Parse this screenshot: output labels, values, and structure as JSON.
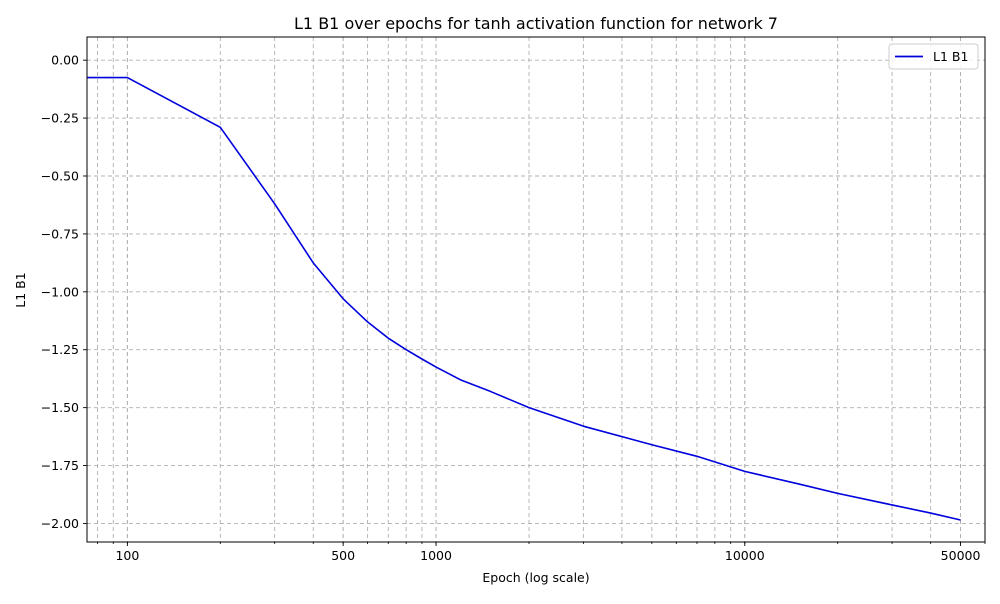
{
  "chart_data": {
    "type": "line",
    "title": "L1 B1 over epochs for tanh activation function for network 7",
    "xlabel": "Epoch (log scale)",
    "ylabel": "L1 B1",
    "xscale": "log",
    "xlim": [
      74,
      60000
    ],
    "ylim": [
      -2.08,
      0.1
    ],
    "xticks": [
      {
        "value": 100,
        "label": "100"
      },
      {
        "value": 500,
        "label": "500"
      },
      {
        "value": 1000,
        "label": "1000"
      },
      {
        "value": 10000,
        "label": "10000"
      },
      {
        "value": 50000,
        "label": "50000"
      }
    ],
    "yticks": [
      {
        "value": 0.0,
        "label": "0.00"
      },
      {
        "value": -0.25,
        "label": "−0.25"
      },
      {
        "value": -0.5,
        "label": "−0.50"
      },
      {
        "value": -0.75,
        "label": "−0.75"
      },
      {
        "value": -1.0,
        "label": "−1.00"
      },
      {
        "value": -1.25,
        "label": "−1.25"
      },
      {
        "value": -1.5,
        "label": "−1.50"
      },
      {
        "value": -1.75,
        "label": "−1.75"
      },
      {
        "value": -2.0,
        "label": "−2.00"
      }
    ],
    "grid": true,
    "minor_grid_x": true,
    "legend_position": "top-right",
    "series": [
      {
        "name": "L1 B1",
        "color": "#0000dd",
        "x": [
          74,
          100,
          200,
          300,
          400,
          500,
          600,
          700,
          800,
          900,
          1000,
          1200,
          1500,
          2000,
          3000,
          5000,
          7000,
          10000,
          15000,
          20000,
          30000,
          40000,
          50000
        ],
        "y": [
          -0.075,
          -0.075,
          -0.29,
          -0.62,
          -0.875,
          -1.03,
          -1.13,
          -1.2,
          -1.25,
          -1.29,
          -1.325,
          -1.38,
          -1.43,
          -1.5,
          -1.58,
          -1.66,
          -1.71,
          -1.775,
          -1.83,
          -1.87,
          -1.92,
          -1.955,
          -1.985
        ]
      }
    ]
  }
}
